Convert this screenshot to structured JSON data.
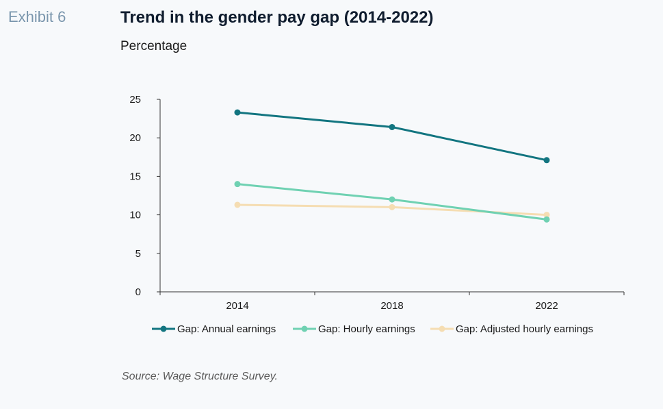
{
  "header": {
    "exhibit": "Exhibit 6",
    "title": "Trend in the gender pay gap (2014-2022)",
    "subtitle": "Percentage"
  },
  "footer": {
    "source": "Source: Wage Structure Survey."
  },
  "chart_data": {
    "type": "line",
    "title": "Trend in the gender pay gap (2014-2022)",
    "ylabel": "Percentage",
    "xlabel": "",
    "categories": [
      "2014",
      "2018",
      "2022"
    ],
    "ylim": [
      0,
      25
    ],
    "yticks": [
      0,
      5,
      10,
      15,
      20,
      25
    ],
    "grid": false,
    "legend_position": "bottom",
    "series": [
      {
        "name": "Gap: Annual earnings",
        "color": "#127580",
        "values": [
          23.3,
          21.4,
          17.1
        ]
      },
      {
        "name": "Gap: Hourly earnings",
        "color": "#6fd1b2",
        "values": [
          14.0,
          12.0,
          9.4
        ]
      },
      {
        "name": "Gap: Adjusted hourly earnings",
        "color": "#f5ddb2",
        "values": [
          11.3,
          11.0,
          10.0
        ]
      }
    ]
  }
}
